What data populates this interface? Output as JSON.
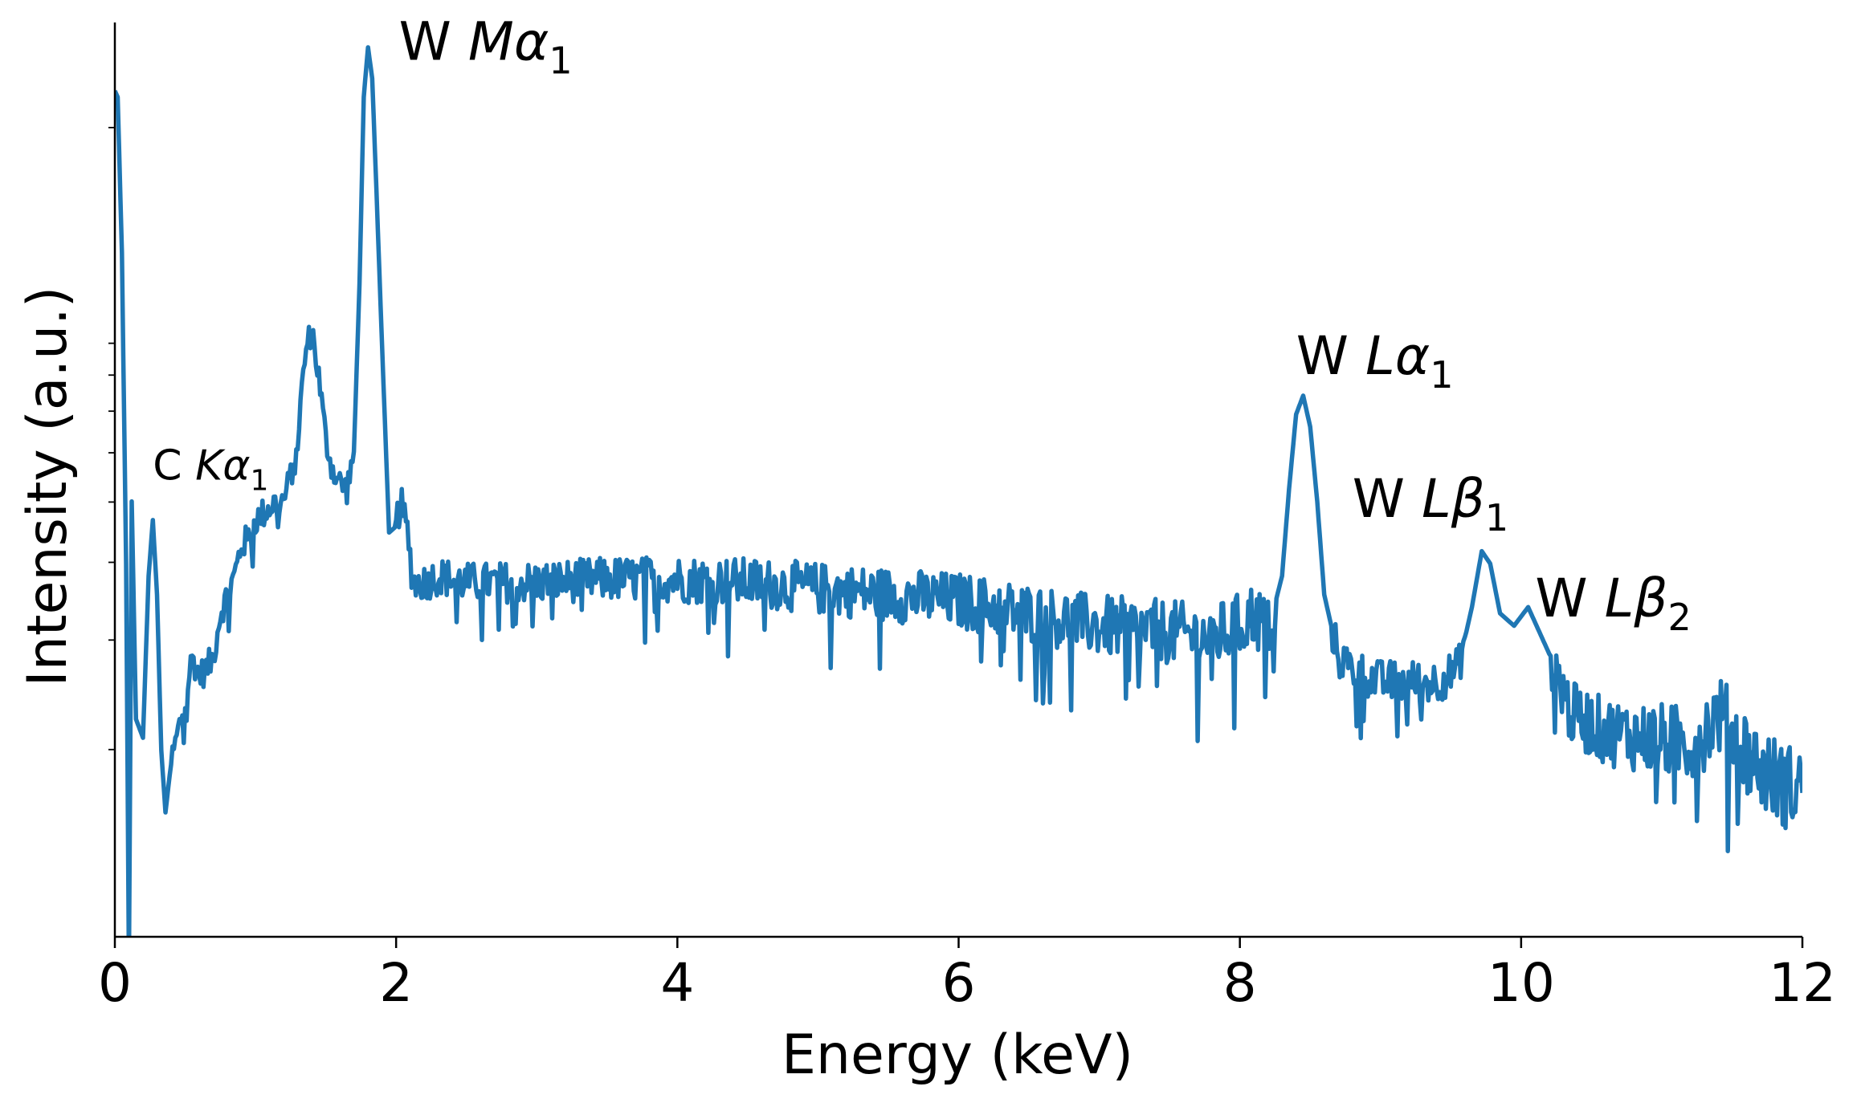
{
  "chart_data": {
    "type": "line",
    "title": "",
    "xlabel": "Energy (keV)",
    "ylabel": "Intensity (a.u.)",
    "xlim": [
      0,
      12
    ],
    "ylim_log10": [
      0,
      1.47
    ],
    "yscale": "log",
    "xticks": [
      0,
      2,
      4,
      6,
      8,
      10,
      12
    ],
    "xtick_labels": [
      "0",
      "2",
      "4",
      "6",
      "8",
      "10",
      "12"
    ],
    "grid": false,
    "legend": "none",
    "line_color": "#1f77b4",
    "annotations": [
      {
        "element": "C",
        "line": "K",
        "greek": "α",
        "sub": "1",
        "x": 0.27,
        "y_log10": 0.735
      },
      {
        "element": "W",
        "line": "M",
        "greek": "α",
        "sub": "1",
        "x": 2.02,
        "y_log10": 1.41
      },
      {
        "element": "W",
        "line": "L",
        "greek": "α",
        "sub": "1",
        "x": 8.4,
        "y_log10": 0.905
      },
      {
        "element": "W",
        "line": "L",
        "greek": "β",
        "sub": "1",
        "x": 8.8,
        "y_log10": 0.675
      },
      {
        "element": "W",
        "line": "L",
        "greek": "β",
        "sub": "2",
        "x": 10.1,
        "y_log10": 0.515
      }
    ],
    "series": [
      {
        "values_log10": [
          [
            0.0,
            1.36
          ],
          [
            0.02,
            1.35
          ],
          [
            0.05,
            1.1
          ],
          [
            0.08,
            0.6
          ],
          [
            0.1,
            -0.05
          ],
          [
            0.12,
            0.7
          ],
          [
            0.15,
            0.35
          ],
          [
            0.2,
            0.32
          ],
          [
            0.24,
            0.58
          ],
          [
            0.27,
            0.67
          ],
          [
            0.3,
            0.55
          ],
          [
            0.33,
            0.3
          ],
          [
            0.36,
            0.2
          ],
          [
            0.4,
            0.28
          ],
          [
            0.45,
            0.33
          ],
          [
            0.5,
            0.38
          ],
          [
            0.55,
            0.45
          ],
          [
            0.6,
            0.42
          ],
          [
            0.65,
            0.43
          ],
          [
            0.7,
            0.45
          ],
          [
            0.75,
            0.52
          ],
          [
            0.8,
            0.55
          ],
          [
            0.85,
            0.58
          ],
          [
            0.9,
            0.63
          ],
          [
            0.95,
            0.64
          ],
          [
            1.0,
            0.67
          ],
          [
            1.05,
            0.68
          ],
          [
            1.1,
            0.69
          ],
          [
            1.15,
            0.7
          ],
          [
            1.2,
            0.7
          ],
          [
            1.25,
            0.74
          ],
          [
            1.3,
            0.8
          ],
          [
            1.35,
            0.93
          ],
          [
            1.4,
            0.98
          ],
          [
            1.45,
            0.9
          ],
          [
            1.5,
            0.8
          ],
          [
            1.55,
            0.75
          ],
          [
            1.6,
            0.73
          ],
          [
            1.65,
            0.72
          ],
          [
            1.7,
            0.78
          ],
          [
            1.74,
            1.05
          ],
          [
            1.77,
            1.35
          ],
          [
            1.8,
            1.43
          ],
          [
            1.83,
            1.38
          ],
          [
            1.86,
            1.2
          ],
          [
            1.9,
            0.95
          ],
          [
            1.95,
            0.65
          ],
          [
            2.0,
            0.66
          ],
          [
            2.03,
            0.7
          ],
          [
            2.08,
            0.65
          ],
          [
            2.12,
            0.57
          ],
          [
            2.2,
            0.57
          ],
          [
            2.3,
            0.58
          ],
          [
            2.5,
            0.57
          ],
          [
            3.0,
            0.57
          ],
          [
            3.5,
            0.575
          ],
          [
            4.0,
            0.575
          ],
          [
            4.5,
            0.57
          ],
          [
            5.0,
            0.56
          ],
          [
            5.5,
            0.55
          ],
          [
            6.0,
            0.54
          ],
          [
            6.5,
            0.52
          ],
          [
            7.0,
            0.5
          ],
          [
            7.5,
            0.49
          ],
          [
            7.8,
            0.48
          ],
          [
            8.0,
            0.5
          ],
          [
            8.1,
            0.52
          ],
          [
            8.2,
            0.49
          ],
          [
            8.3,
            0.58
          ],
          [
            8.35,
            0.72
          ],
          [
            8.4,
            0.84
          ],
          [
            8.45,
            0.87
          ],
          [
            8.5,
            0.82
          ],
          [
            8.55,
            0.7
          ],
          [
            8.6,
            0.55
          ],
          [
            8.7,
            0.45
          ],
          [
            8.8,
            0.43
          ],
          [
            9.0,
            0.41
          ],
          [
            9.2,
            0.41
          ],
          [
            9.4,
            0.41
          ],
          [
            9.55,
            0.43
          ],
          [
            9.65,
            0.53
          ],
          [
            9.72,
            0.62
          ],
          [
            9.78,
            0.6
          ],
          [
            9.85,
            0.52
          ],
          [
            9.95,
            0.5
          ],
          [
            10.05,
            0.53
          ],
          [
            10.15,
            0.48
          ],
          [
            10.25,
            0.43
          ],
          [
            10.35,
            0.36
          ],
          [
            10.6,
            0.33
          ],
          [
            10.9,
            0.32
          ],
          [
            11.2,
            0.31
          ],
          [
            11.3,
            0.33
          ],
          [
            11.4,
            0.36
          ],
          [
            11.5,
            0.33
          ],
          [
            11.7,
            0.27
          ],
          [
            11.9,
            0.24
          ],
          [
            12.0,
            0.25
          ]
        ]
      }
    ]
  }
}
